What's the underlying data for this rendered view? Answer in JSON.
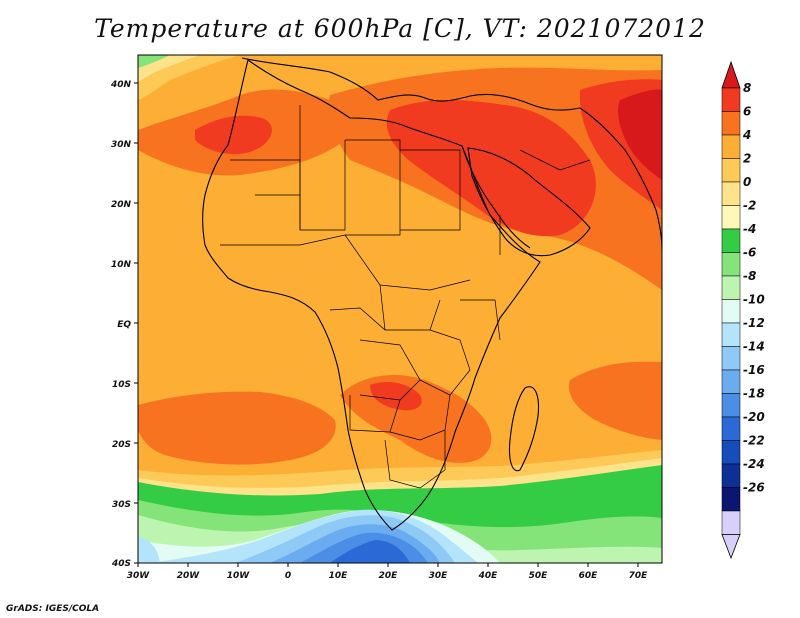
{
  "title": "Temperature at 600hPa [C], VT: 2021072012",
  "credit": "GrADS: IGES/COLA",
  "axes": {
    "lat_labels": [
      "40N",
      "30N",
      "20N",
      "10N",
      "EQ",
      "10S",
      "20S",
      "30S",
      "40S"
    ],
    "lon_labels": [
      "30W",
      "20W",
      "10W",
      "0",
      "10E",
      "20E",
      "30E",
      "40E",
      "50E",
      "60E",
      "70E"
    ]
  },
  "colorbar": {
    "labels": [
      "8",
      "6",
      "4",
      "2",
      "0",
      "-2",
      "-4",
      "-6",
      "-8",
      "-10",
      "-12",
      "-14",
      "-16",
      "-18",
      "-20",
      "-22",
      "-24",
      "-26"
    ],
    "colors": [
      "#d7191c",
      "#f03b20",
      "#f8731f",
      "#fdae35",
      "#feca57",
      "#fee38b",
      "#fff8b8",
      "#33cc44",
      "#84e47a",
      "#bdf5b0",
      "#e2fcf5",
      "#b4e4fb",
      "#8fcaf6",
      "#6aacef",
      "#4a8ee6",
      "#2b6ad6",
      "#174cbd",
      "#0d2f96",
      "#0a1670",
      "#d8d0f8"
    ]
  }
}
